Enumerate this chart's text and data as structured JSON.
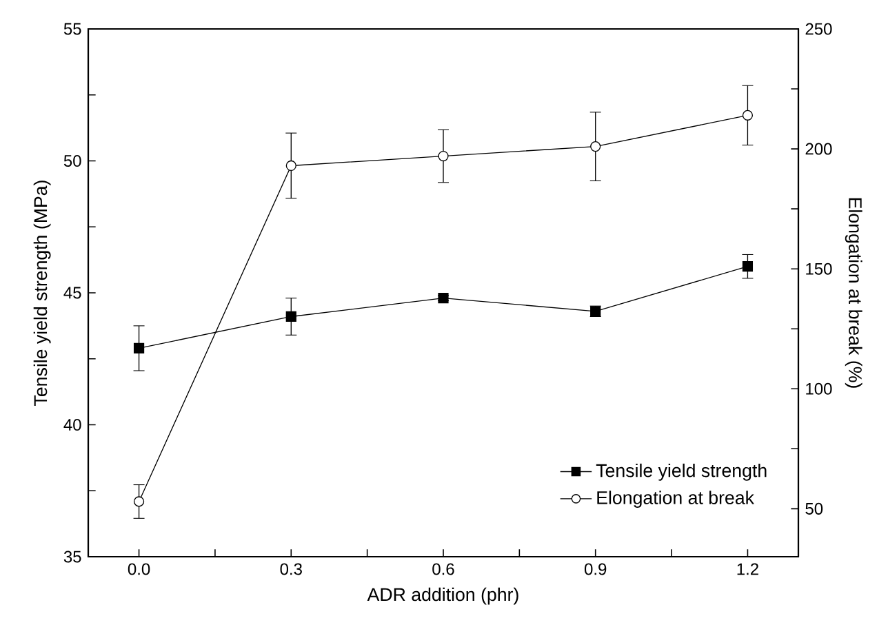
{
  "chart_data": {
    "type": "line",
    "xlabel": "ADR addition (phr)",
    "ylabel": "Tensile yield strength (MPa)",
    "y2label": "Elongation at break (%)",
    "x": [
      0.0,
      0.3,
      0.6,
      0.9,
      1.2
    ],
    "xlim": [
      -0.1,
      1.3
    ],
    "xticks": [
      {
        "value": 0.0,
        "label": "0.0"
      },
      {
        "value": 0.15,
        "label": null
      },
      {
        "value": 0.3,
        "label": "0.3"
      },
      {
        "value": 0.45,
        "label": null
      },
      {
        "value": 0.6,
        "label": "0.6"
      },
      {
        "value": 0.75,
        "label": null
      },
      {
        "value": 0.9,
        "label": "0.9"
      },
      {
        "value": 1.05,
        "label": null
      },
      {
        "value": 1.2,
        "label": "1.2"
      }
    ],
    "ylim": [
      35,
      55
    ],
    "yticks": [
      35,
      {
        "value": 37.5,
        "label": null
      },
      40,
      {
        "value": 42.5,
        "label": null
      },
      45,
      {
        "value": 47.5,
        "label": null
      },
      50,
      {
        "value": 52.5,
        "label": null
      },
      55
    ],
    "y2lim": [
      30,
      250
    ],
    "y2ticks": [
      50,
      {
        "value": 75,
        "label": null
      },
      100,
      {
        "value": 125,
        "label": null
      },
      150,
      {
        "value": 175,
        "label": null
      },
      200,
      {
        "value": 225,
        "label": null
      },
      250
    ],
    "series": [
      {
        "name": "Tensile yield strength",
        "color": "#000000",
        "marker": "square",
        "values": [
          42.9,
          44.1,
          44.8,
          44.3,
          46.0
        ],
        "errors": [
          0.85,
          0.7,
          0.1,
          0.2,
          0.45
        ]
      },
      {
        "name": "Elongation at break",
        "color": "#000000",
        "marker": "circle",
        "axis": "y2",
        "values": [
          53,
          193,
          197,
          201,
          214
        ],
        "errors": [
          7,
          13.6,
          11,
          14.3,
          12.4
        ]
      }
    ],
    "grid": false,
    "legend": "bottom right",
    "line_style": "solid"
  }
}
